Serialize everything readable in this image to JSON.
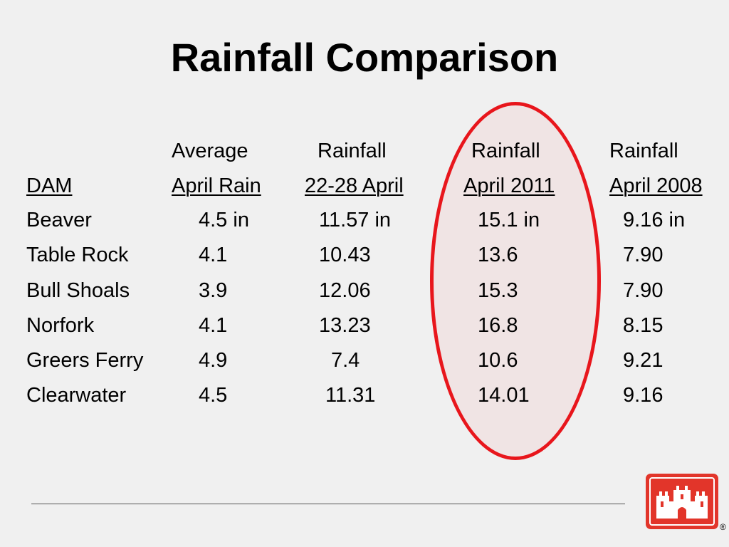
{
  "slide": {
    "title": "Rainfall Comparison",
    "registered_mark": "®"
  },
  "table": {
    "header_top": [
      "Average",
      "Rainfall",
      "Rainfall",
      "Rainfall"
    ],
    "header_bottom": [
      "DAM",
      "April Rain",
      "22-28 April",
      "April 2011",
      "April 2008"
    ],
    "rows": [
      [
        "Beaver",
        "4.5 in",
        "11.57 in",
        "15.1 in",
        "9.16 in"
      ],
      [
        "Table Rock",
        "4.1",
        "10.43",
        "13.6",
        "7.90"
      ],
      [
        "Bull Shoals",
        "3.9",
        "12.06",
        "15.3",
        "7.90"
      ],
      [
        "Norfork",
        "4.1",
        "13.23",
        "16.8",
        "8.15"
      ],
      [
        "Greers Ferry",
        "4.9",
        "7.4",
        "10.6",
        "9.21"
      ],
      [
        "Clearwater",
        "4.5",
        "11.31",
        "14.01",
        "9.16"
      ]
    ]
  },
  "highlight": {
    "column": "April 2011",
    "color": "#e8161c"
  },
  "logo": {
    "icon": "castle-icon",
    "color": "#e2352a"
  }
}
